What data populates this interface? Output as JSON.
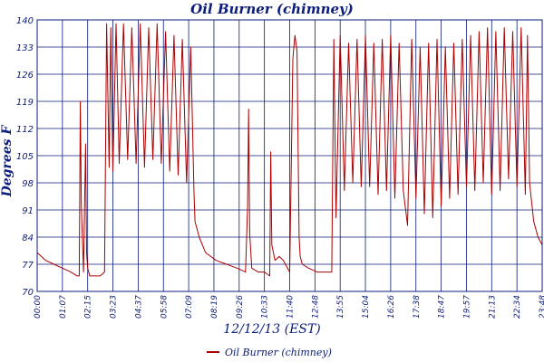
{
  "chart_data": {
    "type": "line",
    "title": "Oil Burner (chimney)",
    "xlabel": "12/12/13 (EST)",
    "ylabel": "Degrees F",
    "x_ticks": [
      "00:00",
      "01:07",
      "02:15",
      "03:23",
      "04:37",
      "05:58",
      "07:09",
      "08:19",
      "09:26",
      "10:33",
      "11:40",
      "12:48",
      "13:55",
      "15:04",
      "16:26",
      "17:38",
      "18:47",
      "19:57",
      "21:13",
      "22:34",
      "23:48"
    ],
    "y_ticks": [
      70,
      77,
      84,
      91,
      98,
      105,
      112,
      119,
      126,
      133,
      140
    ],
    "ylim": [
      70,
      140
    ],
    "xlim": [
      0,
      24
    ],
    "grid": true,
    "series": [
      {
        "name": "Oil Burner (chimney)",
        "color": "#aa0000",
        "x": [
          0,
          0.4,
          0.8,
          1.2,
          1.6,
          1.9,
          2.0,
          2.05,
          2.1,
          2.2,
          2.3,
          2.35,
          2.4,
          2.5,
          2.6,
          2.8,
          3.0,
          3.2,
          3.3,
          3.42,
          3.5,
          3.6,
          3.75,
          3.9,
          4.1,
          4.3,
          4.5,
          4.7,
          4.9,
          5.1,
          5.3,
          5.5,
          5.7,
          5.9,
          6.1,
          6.3,
          6.5,
          6.7,
          6.9,
          7.1,
          7.3,
          7.45,
          7.5,
          7.7,
          8.0,
          8.5,
          9.0,
          9.5,
          9.9,
          10.0,
          10.05,
          10.1,
          10.2,
          10.5,
          10.8,
          11.05,
          11.1,
          11.15,
          11.3,
          11.5,
          11.7,
          12.0,
          12.15,
          12.25,
          12.35,
          12.45,
          12.5,
          12.6,
          12.9,
          13.3,
          13.7,
          14.0,
          14.1,
          14.2,
          14.4,
          14.6,
          14.8,
          15.0,
          15.2,
          15.4,
          15.6,
          15.8,
          16.0,
          16.2,
          16.4,
          16.6,
          16.8,
          17.0,
          17.2,
          17.4,
          17.6,
          17.8,
          18.0,
          18.2,
          18.4,
          18.6,
          18.8,
          19.0,
          19.2,
          19.4,
          19.6,
          19.8,
          20.0,
          20.2,
          20.4,
          20.6,
          20.8,
          21.0,
          21.2,
          21.4,
          21.6,
          21.8,
          22.0,
          22.2,
          22.4,
          22.6,
          22.8,
          23.0,
          23.2,
          23.3,
          23.4,
          23.6,
          23.8,
          24.0
        ],
        "values": [
          80,
          78,
          77,
          76,
          75,
          74,
          74,
          119,
          92,
          75,
          108,
          80,
          76,
          74,
          74,
          74,
          74,
          75,
          139,
          102,
          138,
          101,
          139,
          103,
          139,
          104,
          138,
          103,
          139,
          102,
          138,
          104,
          139,
          103,
          137,
          101,
          136,
          100,
          135,
          98,
          133,
          96,
          88,
          84,
          80,
          78,
          77,
          76,
          75,
          92,
          117,
          85,
          76,
          75,
          75,
          74,
          106,
          82,
          78,
          79,
          78,
          75,
          130,
          136,
          132,
          84,
          79,
          77,
          76,
          75,
          75,
          75,
          135,
          89,
          136,
          96,
          134,
          98,
          135,
          97,
          136,
          97,
          134,
          95,
          135,
          96,
          136,
          94,
          134,
          96,
          87,
          135,
          94,
          133,
          90,
          134,
          89,
          135,
          92,
          133,
          94,
          134,
          95,
          135,
          97,
          136,
          96,
          137,
          98,
          138,
          95,
          137,
          96,
          138,
          99,
          137,
          97,
          138,
          95,
          136,
          98,
          88,
          84,
          82
        ]
      }
    ],
    "legend": "bottom-center"
  }
}
